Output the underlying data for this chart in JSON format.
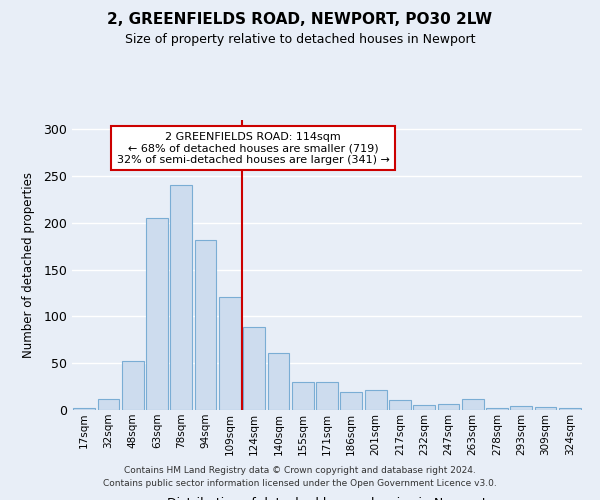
{
  "title": "2, GREENFIELDS ROAD, NEWPORT, PO30 2LW",
  "subtitle": "Size of property relative to detached houses in Newport",
  "xlabel": "Distribution of detached houses by size in Newport",
  "ylabel": "Number of detached properties",
  "bar_color": "#cddcee",
  "bar_edge_color": "#7aadd4",
  "categories": [
    "17sqm",
    "32sqm",
    "48sqm",
    "63sqm",
    "78sqm",
    "94sqm",
    "109sqm",
    "124sqm",
    "140sqm",
    "155sqm",
    "171sqm",
    "186sqm",
    "201sqm",
    "217sqm",
    "232sqm",
    "247sqm",
    "263sqm",
    "278sqm",
    "293sqm",
    "309sqm",
    "324sqm"
  ],
  "values": [
    2,
    12,
    52,
    205,
    240,
    182,
    121,
    89,
    61,
    30,
    30,
    19,
    21,
    11,
    5,
    6,
    12,
    2,
    4,
    3,
    2
  ],
  "vline_x_index": 6.5,
  "vline_color": "#cc0000",
  "annotation_text": "2 GREENFIELDS ROAD: 114sqm\n← 68% of detached houses are smaller (719)\n32% of semi-detached houses are larger (341) →",
  "annotation_box_facecolor": "#ffffff",
  "annotation_box_edgecolor": "#cc0000",
  "ylim": [
    0,
    310
  ],
  "yticks": [
    0,
    50,
    100,
    150,
    200,
    250,
    300
  ],
  "footer": "Contains HM Land Registry data © Crown copyright and database right 2024.\nContains public sector information licensed under the Open Government Licence v3.0.",
  "background_color": "#e8eef7",
  "grid_color": "#ffffff"
}
